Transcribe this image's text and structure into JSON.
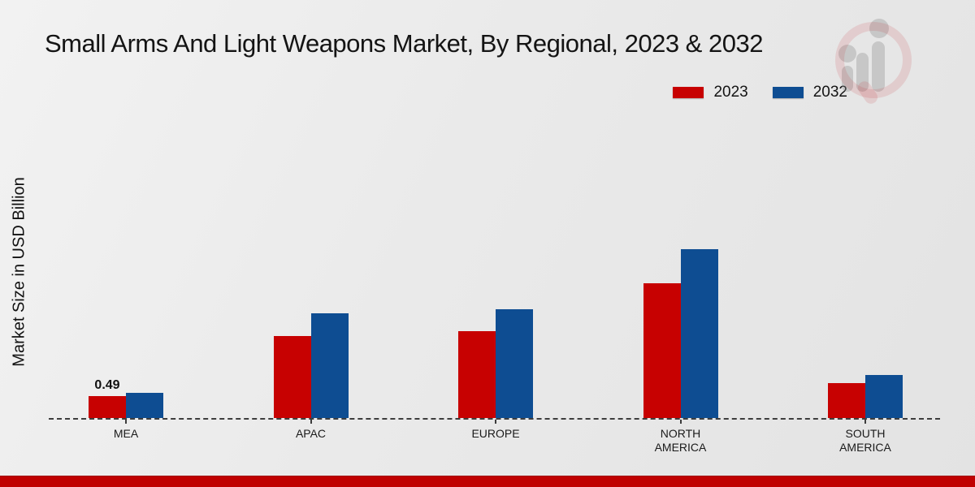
{
  "page": {
    "background_color": "#e9e9e9",
    "footer_strip_color": "#c00000"
  },
  "header": {
    "title": "Small Arms And Light Weapons Market, By Regional, 2023 & 2032"
  },
  "watermark": {
    "name": "market-research-magnifier-logo"
  },
  "chart_data": {
    "type": "bar",
    "title": "Small Arms And Light Weapons Market, By Regional, 2023 & 2032",
    "xlabel": "",
    "ylabel": "Market Size in USD Billion",
    "categories": [
      "MEA",
      "APAC",
      "EUROPE",
      "NORTH AMERICA",
      "SOUTH AMERICA"
    ],
    "series": [
      {
        "name": "2023",
        "color": "#c70101",
        "values": [
          0.49,
          1.83,
          1.94,
          3.01,
          0.78
        ]
      },
      {
        "name": "2032",
        "color": "#0e4d92",
        "values": [
          0.56,
          2.34,
          2.43,
          3.79,
          0.96
        ]
      }
    ],
    "annotations": [
      {
        "category": "MEA",
        "series": "2023",
        "text": "0.49"
      }
    ],
    "ylim": [
      0,
      4.2
    ],
    "grid": false,
    "legend_position": "top-right",
    "baseline_style": "dashed"
  }
}
